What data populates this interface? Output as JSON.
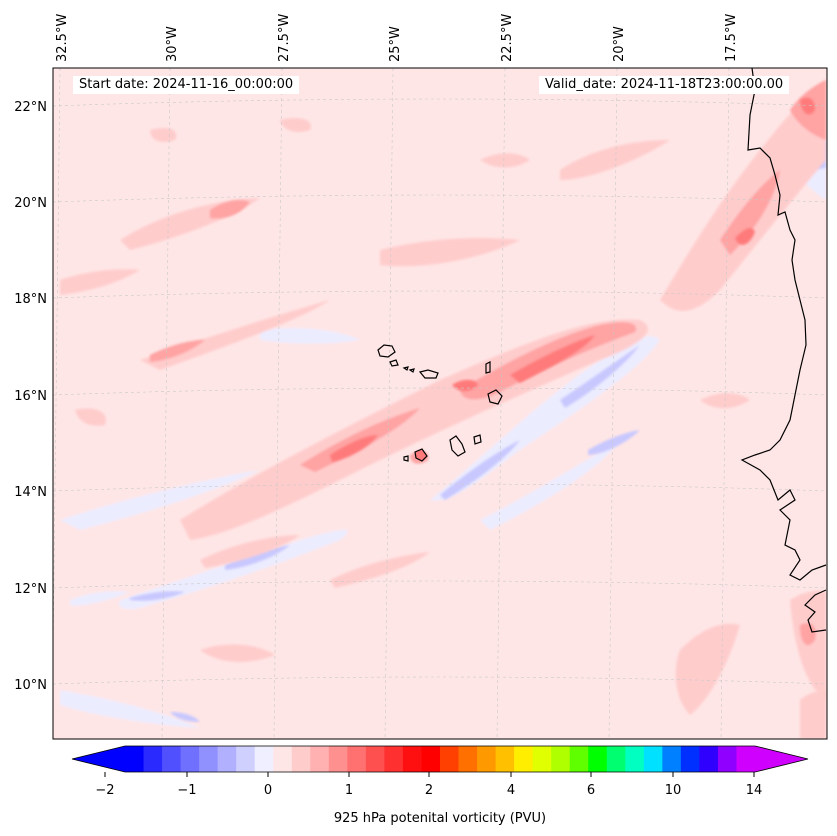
{
  "header": {
    "start_date": "Start date: 2024-11-16_00:00:00",
    "valid_date": "Valid_date: 2024-11-18T23:00:00.00"
  },
  "map": {
    "lon_labels": [
      "32.5°W",
      "30°W",
      "27.5°W",
      "25°W",
      "22.5°W",
      "20°W",
      "17.5°W"
    ],
    "lat_labels": [
      "22°N",
      "20°N",
      "18°N",
      "16°N",
      "14°N",
      "12°N",
      "10°N"
    ],
    "gridlines": "dashed-light-gray",
    "field_colors": {
      "background": "#ffe6e6",
      "light_red": "#ffcccc",
      "mid_red": "#ffa3a3",
      "strong_red": "#ff7a7a",
      "light_blue": "#ececff",
      "mid_blue": "#c8c8ff",
      "strong_blue": "#8080ff"
    }
  },
  "colorbar": {
    "label": "925 hPa potenital vorticity (PVU)",
    "tick_labels": [
      "−2",
      "−1",
      "0",
      "1",
      "2",
      "4",
      "6",
      "10",
      "14"
    ],
    "extend": "both",
    "colors": [
      "#0000ff",
      "#2a2aff",
      "#5050ff",
      "#7070ff",
      "#9090ff",
      "#b0b0ff",
      "#d0d0ff",
      "#efefff",
      "#ffe6e6",
      "#ffcccc",
      "#ffb0b0",
      "#ff9090",
      "#ff7070",
      "#ff5050",
      "#ff3030",
      "#ff1010",
      "#ff0000",
      "#ff4000",
      "#ff7000",
      "#ff9900",
      "#ffc000",
      "#ffee00",
      "#e0ff00",
      "#b0ff00",
      "#60ff00",
      "#00ff00",
      "#00ff70",
      "#00ffc0",
      "#00e0ff",
      "#0080ff",
      "#0030ff",
      "#3000ff",
      "#9000ff",
      "#d000ff"
    ]
  }
}
